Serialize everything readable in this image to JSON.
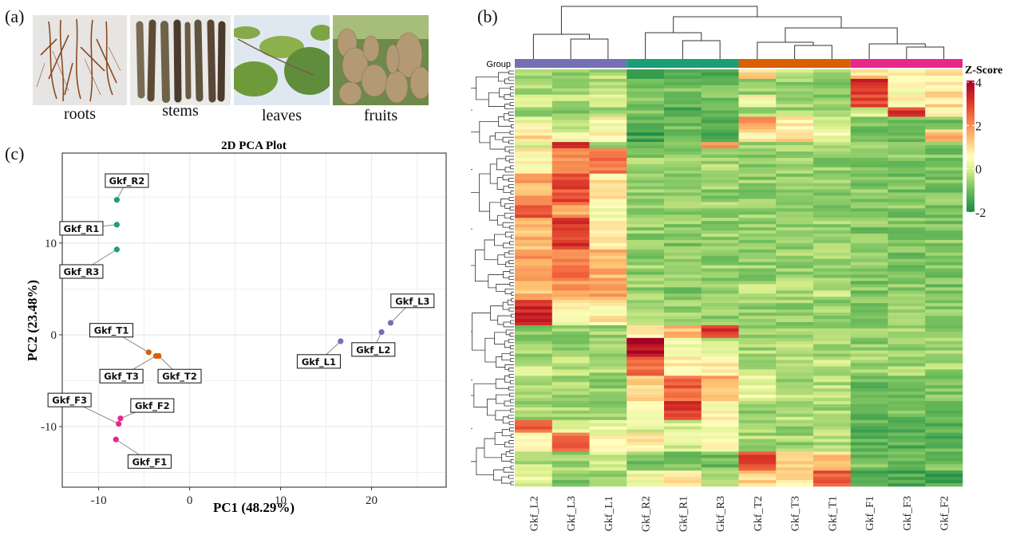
{
  "panels": {
    "a": {
      "label": "(a)",
      "photos": [
        {
          "caption": "roots",
          "subject": "roots-photo"
        },
        {
          "caption": "stems",
          "subject": "stems-photo"
        },
        {
          "caption": "leaves",
          "subject": "leaves-photo"
        },
        {
          "caption": "fruits",
          "subject": "fruits-photo"
        }
      ]
    },
    "b": {
      "label": "(b)"
    },
    "c": {
      "label": "(c)"
    }
  },
  "chart_data": [
    {
      "id": "pca",
      "type": "scatter",
      "title": "2D PCA Plot",
      "xlabel": "PC1 (48.29%)",
      "ylabel": "PC2 (23.48%)",
      "xlim": [
        -14,
        28.2
      ],
      "ylim": [
        -16.6,
        19.8
      ],
      "xticks": [
        -10,
        0,
        10,
        20
      ],
      "yticks": [
        -10,
        0,
        10
      ],
      "grid": true,
      "legend": "none",
      "groups": [
        {
          "name": "R",
          "color": "#1b9e77"
        },
        {
          "name": "T",
          "color": "#d95f02"
        },
        {
          "name": "F",
          "color": "#e7298a"
        },
        {
          "name": "L",
          "color": "#7570b3"
        }
      ],
      "points": [
        {
          "label": "Gkf_R2",
          "group": "R",
          "x": -8.0,
          "y": 14.7,
          "label_dx": 1.1,
          "label_dy": 2.1
        },
        {
          "label": "Gkf_R1",
          "group": "R",
          "x": -8.0,
          "y": 12.0,
          "label_dx": -3.9,
          "label_dy": -0.4
        },
        {
          "label": "Gkf_R3",
          "group": "R",
          "x": -8.0,
          "y": 9.3,
          "label_dx": -3.9,
          "label_dy": -2.4
        },
        {
          "label": "Gkf_T1",
          "group": "T",
          "x": -4.5,
          "y": -1.9,
          "label_dx": -4.1,
          "label_dy": 2.4
        },
        {
          "label": "Gkf_T3",
          "group": "T",
          "x": -3.7,
          "y": -2.3,
          "label_dx": -3.8,
          "label_dy": -2.2
        },
        {
          "label": "Gkf_T2",
          "group": "T",
          "x": -3.4,
          "y": -2.3,
          "label_dx": 2.3,
          "label_dy": -2.2
        },
        {
          "label": "Gkf_F2",
          "group": "F",
          "x": -7.6,
          "y": -9.1,
          "label_dx": 3.5,
          "label_dy": 1.4
        },
        {
          "label": "Gkf_F3",
          "group": "F",
          "x": -7.8,
          "y": -9.7,
          "label_dx": -5.4,
          "label_dy": 2.6
        },
        {
          "label": "Gkf_F1",
          "group": "F",
          "x": -8.1,
          "y": -11.4,
          "label_dx": 3.7,
          "label_dy": -2.4
        },
        {
          "label": "Gkf_L1",
          "group": "L",
          "x": 16.6,
          "y": -0.7,
          "label_dx": -2.4,
          "label_dy": -2.2
        },
        {
          "label": "Gkf_L2",
          "group": "L",
          "x": 21.1,
          "y": 0.3,
          "label_dx": -0.9,
          "label_dy": -1.9
        },
        {
          "label": "Gkf_L3",
          "group": "L",
          "x": 22.1,
          "y": 1.3,
          "label_dx": 2.4,
          "label_dy": 2.4
        }
      ]
    },
    {
      "id": "heatmap",
      "type": "heatmap",
      "group_label": "Group",
      "legend_title": "Z-Score",
      "color_scale": {
        "min": -2,
        "max": 4.2,
        "stops": [
          {
            "v": -2,
            "c": "#1a8a45"
          },
          {
            "v": -1,
            "c": "#6cbb5a"
          },
          {
            "v": 0,
            "c": "#d9ef8b"
          },
          {
            "v": 0.6,
            "c": "#ffffbf"
          },
          {
            "v": 1.5,
            "c": "#fdbf6f"
          },
          {
            "v": 2.5,
            "c": "#f46d43"
          },
          {
            "v": 3.3,
            "c": "#d73027"
          },
          {
            "v": 4.2,
            "c": "#a50026"
          }
        ]
      },
      "legend_ticks": [
        4,
        2,
        0,
        -2
      ],
      "columns": [
        "Gkf_L2",
        "Gkf_L3",
        "Gkf_L1",
        "Gkf_R2",
        "Gkf_R1",
        "Gkf_R3",
        "Gkf_T2",
        "Gkf_T3",
        "Gkf_T1",
        "Gkf_F1",
        "Gkf_F3",
        "Gkf_F2"
      ],
      "column_groups": [
        {
          "name": "L",
          "color": "#7570b3",
          "span": 3
        },
        {
          "name": "R",
          "color": "#1b9e77",
          "span": 3
        },
        {
          "name": "T",
          "color": "#d95f02",
          "span": 3
        },
        {
          "name": "F",
          "color": "#e7298a",
          "span": 3
        }
      ],
      "column_dendrogram": "((Gkf_L2,(Gkf_L3,Gkf_L1)),((Gkf_R2,(Gkf_R1,Gkf_R3)),((Gkf_T2,(Gkf_T3,Gkf_T1)),(Gkf_F1,(Gkf_F3,Gkf_F2)))))",
      "row_blocks": [
        {
          "n": 3,
          "z": [
            -0.4,
            -0.5,
            -0.4,
            -1.4,
            -1.3,
            -1.3,
            1.3,
            -0.3,
            -0.4,
            1.2,
            0.6,
            0.8
          ]
        },
        {
          "n": 5,
          "z": [
            -0.5,
            -0.6,
            -0.4,
            -1.1,
            -0.9,
            -1.0,
            -0.5,
            -0.6,
            -0.6,
            3.4,
            0.6,
            0.9
          ]
        },
        {
          "n": 4,
          "z": [
            0.1,
            -0.3,
            0.2,
            -0.8,
            -0.8,
            -0.8,
            0.7,
            -0.4,
            -0.6,
            3.0,
            0.7,
            1.1
          ]
        },
        {
          "n": 3,
          "z": [
            -0.8,
            -0.9,
            -0.6,
            -0.9,
            -1.3,
            -1.2,
            -0.4,
            -0.5,
            -0.5,
            -0.1,
            3.2,
            0.6
          ]
        },
        {
          "n": 4,
          "z": [
            0.4,
            -0.1,
            0.6,
            -1.3,
            -1.0,
            -1.2,
            2.0,
            0.9,
            0.1,
            -0.9,
            -1.0,
            -0.8
          ]
        },
        {
          "n": 4,
          "z": [
            1.1,
            0.3,
            0.7,
            -1.5,
            -1.2,
            -1.4,
            0.9,
            1.3,
            0.4,
            -1.0,
            -0.9,
            1.5
          ]
        },
        {
          "n": 2,
          "z": [
            -0.3,
            3.5,
            -0.4,
            -0.8,
            -0.7,
            1.8,
            -0.5,
            -0.6,
            -0.5,
            -0.7,
            -0.6,
            -0.6
          ]
        },
        {
          "n": 8,
          "z": [
            0.8,
            2.3,
            2.4,
            -0.6,
            -0.6,
            -0.5,
            -0.6,
            -0.6,
            -0.6,
            -0.8,
            -0.8,
            -0.8
          ]
        },
        {
          "n": 10,
          "z": [
            1.7,
            2.9,
            0.9,
            -0.6,
            -0.6,
            -0.6,
            -0.6,
            -0.6,
            -0.6,
            -0.8,
            -0.8,
            -0.8
          ]
        },
        {
          "n": 4,
          "z": [
            2.8,
            1.8,
            0.3,
            -0.6,
            -0.6,
            -0.6,
            -0.6,
            -0.6,
            -0.6,
            -0.8,
            -0.8,
            -0.8
          ]
        },
        {
          "n": 10,
          "z": [
            1.5,
            3.2,
            0.8,
            -0.6,
            -0.7,
            -0.6,
            -0.6,
            -0.6,
            -0.6,
            -0.8,
            -0.8,
            -0.8
          ]
        },
        {
          "n": 10,
          "z": [
            1.8,
            2.3,
            1.6,
            -0.6,
            -0.6,
            -0.6,
            -0.6,
            -0.6,
            -0.6,
            -0.8,
            -0.8,
            -0.8
          ]
        },
        {
          "n": 6,
          "z": [
            1.5,
            1.9,
            1.9,
            -0.6,
            -0.7,
            -0.7,
            -0.2,
            -0.3,
            -0.3,
            -0.8,
            -0.8,
            -0.8
          ]
        },
        {
          "n": 8,
          "z": [
            3.4,
            0.7,
            0.9,
            -0.5,
            -0.6,
            -0.6,
            -0.6,
            -0.6,
            -0.6,
            -0.7,
            -0.7,
            -0.7
          ]
        },
        {
          "n": 4,
          "z": [
            -0.6,
            -0.6,
            -0.6,
            1.0,
            1.4,
            3.2,
            -0.5,
            -0.5,
            -0.5,
            -0.6,
            -0.6,
            -0.6
          ]
        },
        {
          "n": 6,
          "z": [
            -0.6,
            -0.6,
            -0.6,
            4.0,
            0.2,
            0.0,
            -0.4,
            -0.4,
            -0.4,
            -0.6,
            -0.6,
            -0.6
          ]
        },
        {
          "n": 6,
          "z": [
            -0.2,
            -0.3,
            -0.4,
            2.5,
            1.0,
            1.0,
            -0.3,
            -0.1,
            -0.2,
            -0.5,
            -0.5,
            -0.5
          ]
        },
        {
          "n": 8,
          "z": [
            -0.5,
            -0.5,
            -0.6,
            1.3,
            2.6,
            1.6,
            0.3,
            -0.4,
            -0.3,
            -0.9,
            -0.9,
            -0.9
          ]
        },
        {
          "n": 6,
          "z": [
            -0.5,
            -0.5,
            -0.6,
            0.6,
            3.2,
            0.6,
            -0.6,
            -0.4,
            -0.5,
            -1.0,
            -1.0,
            -1.0
          ]
        },
        {
          "n": 4,
          "z": [
            2.5,
            0.4,
            0.3,
            0.2,
            0.1,
            0.5,
            -0.4,
            -0.6,
            -0.5,
            -1.2,
            -1.1,
            -1.1
          ]
        },
        {
          "n": 6,
          "z": [
            0.6,
            2.6,
            0.5,
            0.9,
            0.0,
            0.6,
            -0.4,
            -0.5,
            -0.4,
            -1.2,
            -1.2,
            -1.2
          ]
        },
        {
          "n": 6,
          "z": [
            -0.3,
            -0.5,
            -0.1,
            -0.8,
            -0.9,
            -0.9,
            3.0,
            1.1,
            1.3,
            -0.9,
            -0.9,
            -0.9
          ]
        },
        {
          "n": 5,
          "z": [
            0.3,
            -0.7,
            -0.6,
            0.4,
            1.1,
            -0.7,
            1.2,
            0.9,
            2.8,
            -1.4,
            -1.4,
            -1.4
          ]
        }
      ]
    }
  ]
}
